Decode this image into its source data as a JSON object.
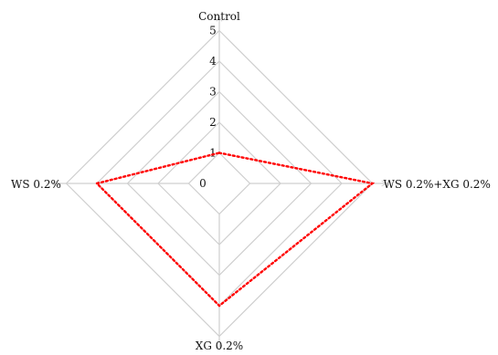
{
  "chart_data": {
    "type": "radar",
    "axes": [
      "Control",
      "WS 0.2%+XG 0.2%",
      "XG 0.2%",
      "WS 0.2%"
    ],
    "ticks": [
      "0",
      "1",
      "2",
      "3",
      "4",
      "5"
    ],
    "rlim": [
      0,
      5
    ],
    "series": [
      {
        "values": [
          1,
          5,
          4,
          4
        ]
      }
    ],
    "grid_color": "#cfcfcf",
    "series_color": "#ff0000",
    "series_style": "dotted"
  }
}
